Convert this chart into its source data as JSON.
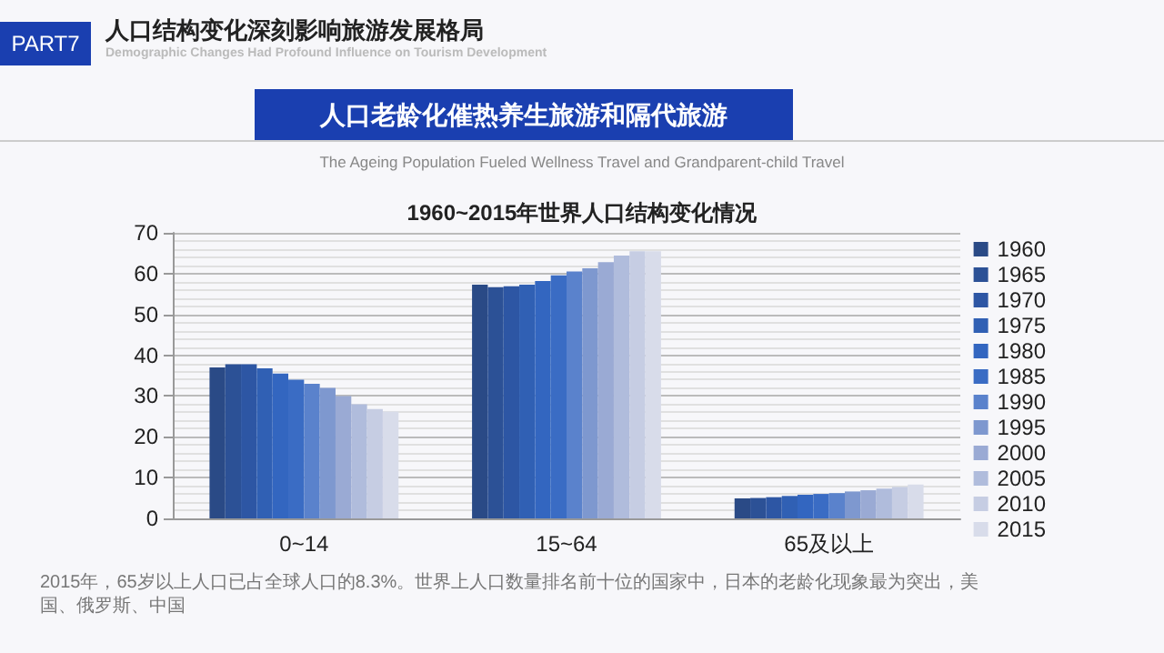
{
  "chart_data": {
    "type": "bar",
    "title": "1960~2015年世界人口结构变化情况",
    "annotations": [
      "PART7",
      "人口结构变化深刻影响旅游发展格局",
      "Demographic Changes Had Profound Influence on Tourism Development",
      "人口老龄化催热养生旅游和隔代旅游",
      "The Ageing Population Fueled Wellness Travel and Grandparent-child Travel",
      "2015年，65岁以上人口已占全球人口的8.3%。世界上人口数量排名前十位的国家中，日本的老龄化现象最为突出，美国、俄罗斯、中国"
    ],
    "categories": [
      "0~14",
      "15~64",
      "65及以上"
    ],
    "ylim": [
      0,
      70
    ],
    "yticks": [
      0,
      10,
      20,
      30,
      40,
      50,
      60,
      70
    ],
    "grid": "y",
    "legend": "right",
    "series": [
      {
        "name": "1960",
        "color": "#2a4a86",
        "values": [
          37,
          57.3,
          4.9
        ]
      },
      {
        "name": "1965",
        "color": "#2c5196",
        "values": [
          37.8,
          56.7,
          5.0
        ]
      },
      {
        "name": "1970",
        "color": "#2d56a4",
        "values": [
          37.8,
          56.9,
          5.2
        ]
      },
      {
        "name": "1975",
        "color": "#3060b4",
        "values": [
          36.8,
          57.3,
          5.5
        ]
      },
      {
        "name": "1980",
        "color": "#3366c0",
        "values": [
          35.5,
          58.2,
          5.8
        ]
      },
      {
        "name": "1985",
        "color": "#3a6cc4",
        "values": [
          34,
          59.6,
          6.0
        ]
      },
      {
        "name": "1990",
        "color": "#5a82cc",
        "values": [
          33,
          60.5,
          6.2
        ]
      },
      {
        "name": "1995",
        "color": "#7e98cf",
        "values": [
          32,
          61.3,
          6.6
        ]
      },
      {
        "name": "2000",
        "color": "#9aaad4",
        "values": [
          30,
          62.8,
          6.9
        ]
      },
      {
        "name": "2005",
        "color": "#b0bcdc",
        "values": [
          28,
          64.4,
          7.3
        ]
      },
      {
        "name": "2010",
        "color": "#c6cde3",
        "values": [
          26.8,
          65.5,
          7.7
        ]
      },
      {
        "name": "2015",
        "color": "#d8dcea",
        "values": [
          26.2,
          65.5,
          8.3
        ]
      }
    ]
  }
}
